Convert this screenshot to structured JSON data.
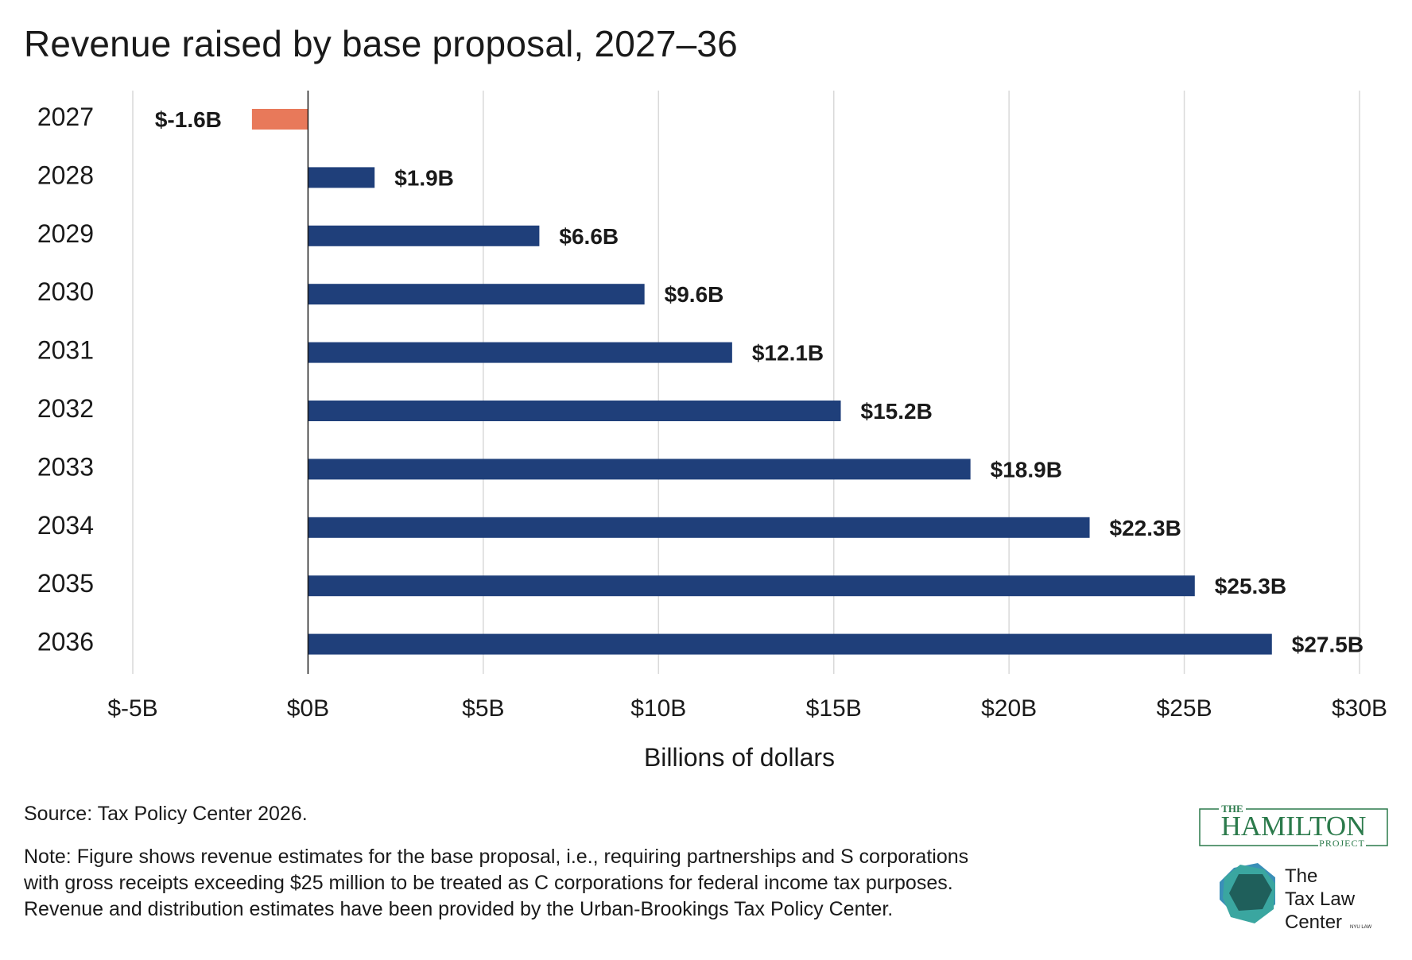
{
  "chart_data": {
    "type": "bar",
    "orientation": "horizontal",
    "title": "Revenue raised by base proposal, 2027–36",
    "xlabel": "Billions of dollars",
    "ylabel": "",
    "categories": [
      "2027",
      "2028",
      "2029",
      "2030",
      "2031",
      "2032",
      "2033",
      "2034",
      "2035",
      "2036"
    ],
    "values": [
      -1.6,
      1.9,
      6.6,
      9.6,
      12.1,
      15.2,
      18.9,
      22.3,
      25.3,
      27.5
    ],
    "data_labels": [
      "$-1.6B",
      "$1.9B",
      "$6.6B",
      "$9.6B",
      "$12.1B",
      "$15.2B",
      "$18.9B",
      "$22.3B",
      "$25.3B",
      "$27.5B"
    ],
    "xlim": [
      -5,
      30
    ],
    "x_ticks": [
      -5,
      0,
      5,
      10,
      15,
      20,
      25,
      30
    ],
    "x_tick_labels": [
      "$-5B",
      "$0B",
      "$5B",
      "$10B",
      "$15B",
      "$20B",
      "$25B",
      "$30B"
    ],
    "grid": "vertical",
    "colors": {
      "positive": "#1f3f7a",
      "negative": "#e8795a",
      "grid": "#d9d9d9",
      "axis": "#1a1a1a"
    }
  },
  "footer": {
    "source": "Source: Tax Policy Center 2026.",
    "note_lines": [
      "Note:  Figure shows revenue estimates for the base proposal, i.e., requiring partnerships and S corporations",
      "with gross receipts exceeding $25 million to be treated as C corporations for federal income tax purposes.",
      "Revenue and distribution estimates have been provided by the Urban-Brookings Tax Policy Center."
    ]
  },
  "logos": {
    "hamilton": {
      "top": "THE",
      "main": "HAMILTON",
      "bottom": "PROJECT",
      "color": "#2b7a4b"
    },
    "taxlaw": {
      "lines": [
        "The",
        "Tax Law",
        "Center"
      ],
      "badge": "NYU LAW",
      "hex_dark": "#1f5f5b",
      "hex_light": "#3aa6a0",
      "hex_blue": "#3a8fb8"
    }
  }
}
